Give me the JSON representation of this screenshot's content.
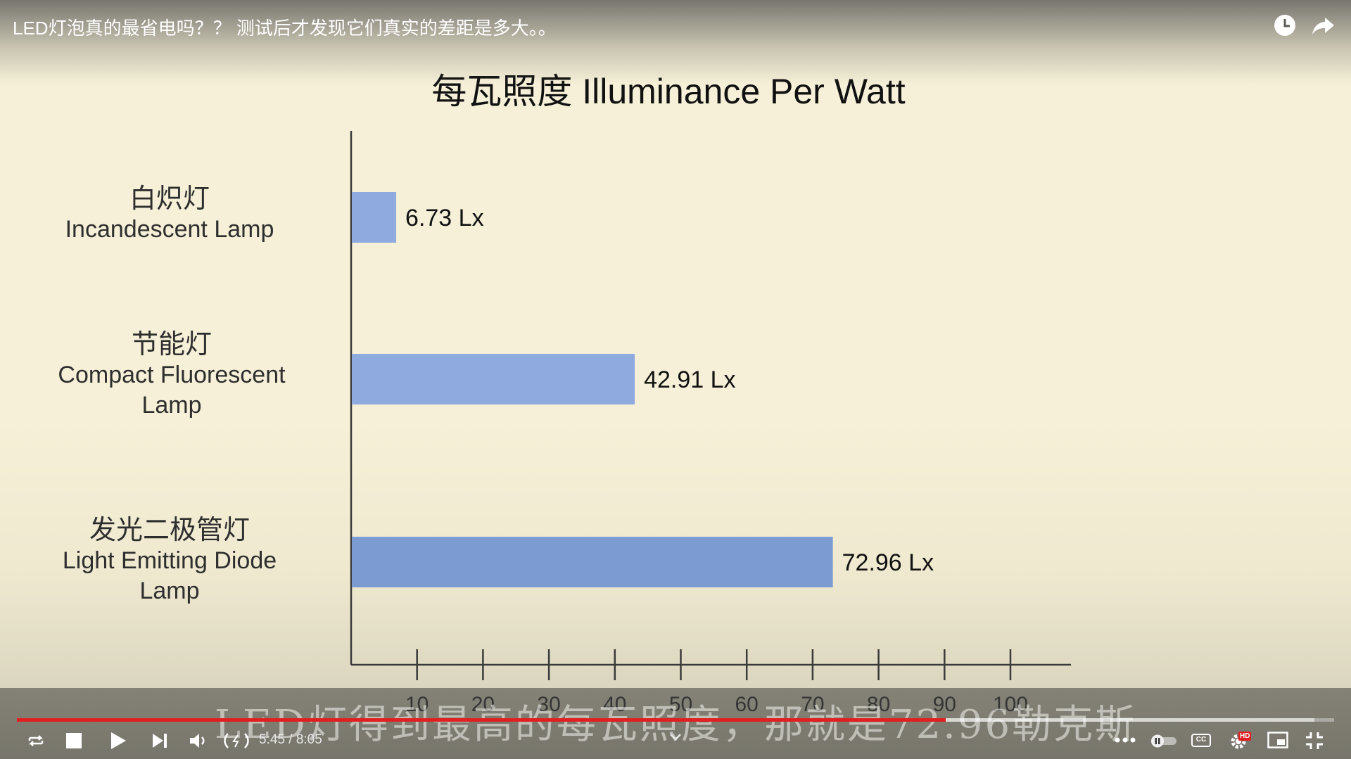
{
  "video": {
    "title": "LED灯泡真的最省电吗？？ 测试后才发现它们真实的差距是多大。。",
    "subtitle": "LED灯得到最高的每瓦照度，那就是72.96勒克斯",
    "time_current": "5:45",
    "time_total": "8:05",
    "time_separator": " / ",
    "progress_fraction": 0.705,
    "buffered_fraction": 0.985
  },
  "chart_data": {
    "type": "bar",
    "orientation": "horizontal",
    "title": "每瓦照度 Illuminance Per Watt",
    "categories": [
      {
        "zh": "白炽灯",
        "en": "Incandescent Lamp",
        "en2": ""
      },
      {
        "zh": "节能灯",
        "en": "Compact Fluorescent",
        "en2": "Lamp"
      },
      {
        "zh": "发光二极管灯",
        "en": "Light Emitting Diode",
        "en2": "Lamp"
      }
    ],
    "values": [
      6.73,
      42.91,
      72.96
    ],
    "value_labels": [
      "6.73 Lx",
      "42.91 Lx",
      "72.96 Lx"
    ],
    "xlim": [
      0,
      110
    ],
    "xticks": [
      10,
      20,
      30,
      40,
      50,
      60,
      70,
      80,
      90,
      100
    ],
    "xtick_labels": [
      "10",
      "20",
      "30",
      "40",
      "50",
      "60",
      "70",
      "80",
      "90",
      "100"
    ],
    "bar_colors": [
      "#8eaadf",
      "#8eaadf",
      "#7c9bd2"
    ],
    "grid": false,
    "legend": "none"
  },
  "colors": {
    "progress_played": "#e02020",
    "hd_badge": "#e02020"
  },
  "icons": {
    "watch_later": "clock-icon",
    "share": "share-arrow-icon",
    "loop": "loop-icon",
    "stop": "stop-icon",
    "play": "play-icon",
    "next": "skip-next-icon",
    "volume": "volume-icon",
    "live": "broadcast-icon",
    "more": "more-dots-icon",
    "autoplay": "autoplay-toggle-icon",
    "captions": "cc-icon",
    "settings": "settings-gear-icon",
    "miniplayer": "miniplayer-icon",
    "fullscreen_exit": "exit-fullscreen-icon"
  },
  "controls": {
    "cc_label": "CC",
    "hd_label": "HD"
  }
}
